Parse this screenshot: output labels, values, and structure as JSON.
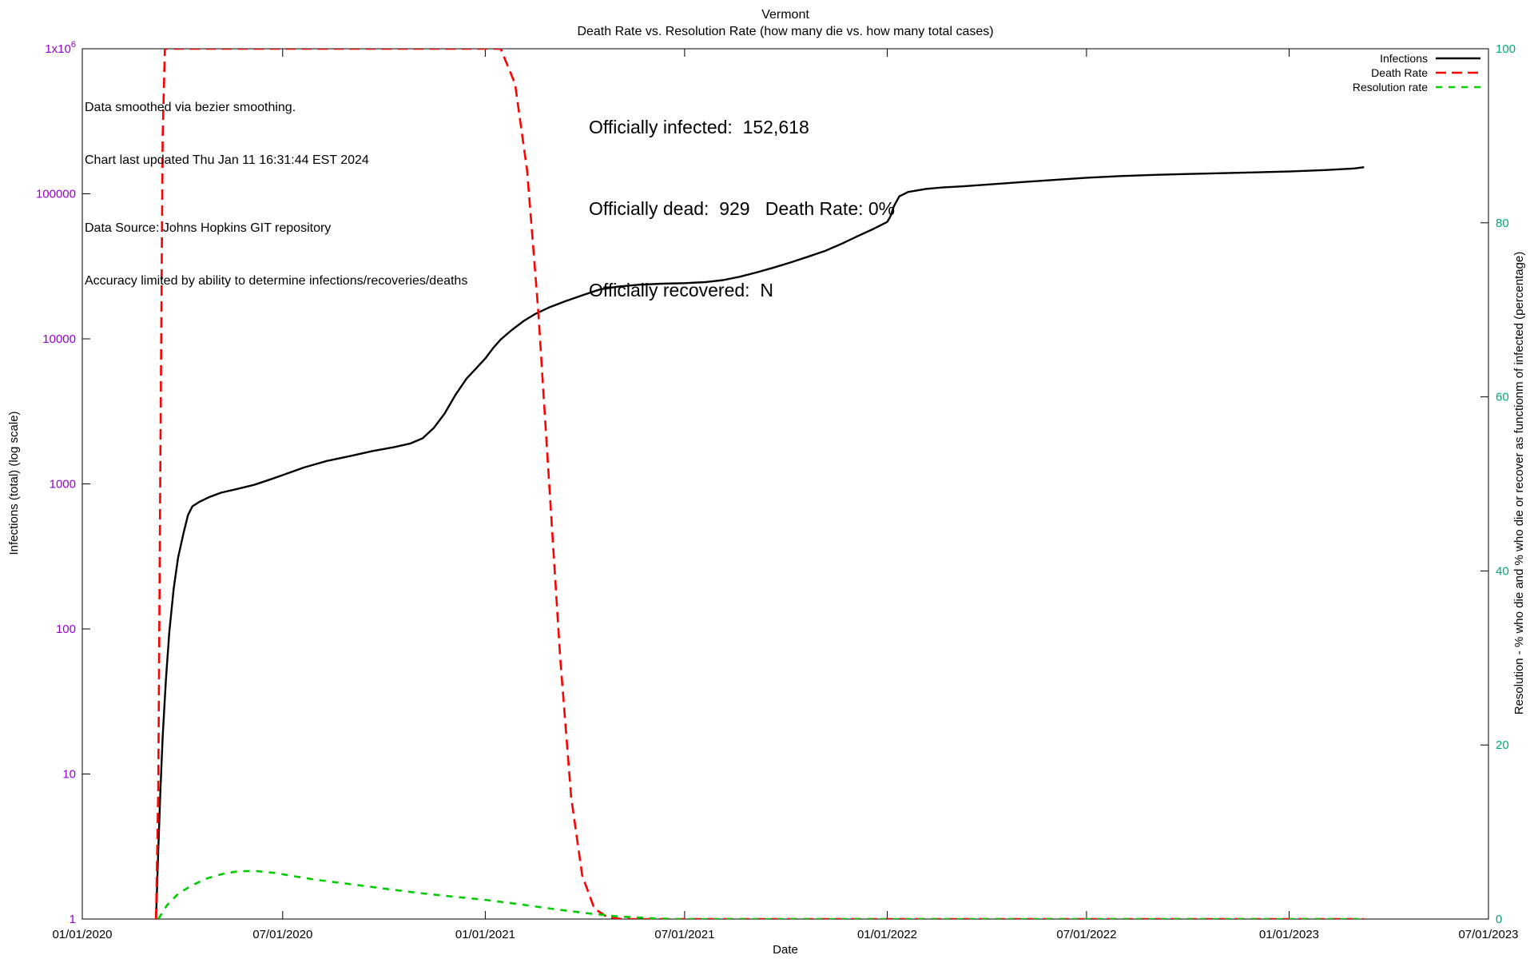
{
  "annotations": {
    "smoothing": "Data smoothed via bezier smoothing.",
    "updated": "Chart last updated Thu Jan 11 16:31:44 EST 2024",
    "source": "Data Source: Johns Hopkins GIT repository",
    "accuracy": "Accuracy limited by ability to determine infections/recoveries/deaths"
  },
  "stats": {
    "infected": "Officially infected:  152,618",
    "dead": "Officially dead:  929   Death Rate: 0%",
    "recovered": "Officially recovered:  N"
  },
  "chart_data": {
    "type": "line",
    "title": "Vermont",
    "subtitle": "Death Rate vs. Resolution Rate (how many die vs. how many total cases)",
    "xlabel": "Date",
    "ylabel_left": "Infections (total) (log scale)",
    "ylabel_right": "Resolution - % who die and % who die or recover as functionm of infected (percentage)",
    "grid": false,
    "legend_position": "top-right",
    "x_range": [
      "2020-01-01",
      "2023-07-01"
    ],
    "x_ticks": [
      "2020-01-01",
      "2020-07-01",
      "2021-01-01",
      "2021-07-01",
      "2022-01-01",
      "2022-07-01",
      "2023-01-01",
      "2023-07-01"
    ],
    "x_tick_labels": [
      "01/01/2020",
      "07/01/2020",
      "01/01/2021",
      "07/01/2021",
      "01/01/2022",
      "07/01/2022",
      "01/01/2023",
      "07/01/2023"
    ],
    "y_left": {
      "scale": "log",
      "min": 1,
      "max": 1000000,
      "tick_values": [
        1,
        10,
        100,
        1000,
        10000,
        100000,
        1000000
      ],
      "tick_labels": [
        "1",
        "10",
        "100",
        "1000",
        "10000",
        "100000",
        "1x10^6"
      ],
      "color": "#9400d3"
    },
    "y_right": {
      "scale": "linear",
      "min": 0,
      "max": 100,
      "tick_values": [
        0,
        20,
        40,
        60,
        80,
        100
      ],
      "tick_labels": [
        "0",
        "20",
        "40",
        "60",
        "80",
        "100"
      ],
      "color": "#00a878"
    },
    "series": [
      {
        "name": "Infections",
        "axis": "left",
        "color": "#000000",
        "dash": null,
        "width": 2.4,
        "points": [
          [
            "2020-03-08",
            1
          ],
          [
            "2020-03-10",
            3
          ],
          [
            "2020-03-12",
            8
          ],
          [
            "2020-03-14",
            18
          ],
          [
            "2020-03-17",
            45
          ],
          [
            "2020-03-20",
            95
          ],
          [
            "2020-03-24",
            190
          ],
          [
            "2020-03-28",
            310
          ],
          [
            "2020-04-02",
            460
          ],
          [
            "2020-04-06",
            610
          ],
          [
            "2020-04-10",
            700
          ],
          [
            "2020-04-16",
            750
          ],
          [
            "2020-04-26",
            815
          ],
          [
            "2020-05-06",
            870
          ],
          [
            "2020-05-20",
            920
          ],
          [
            "2020-06-05",
            985
          ],
          [
            "2020-06-20",
            1075
          ],
          [
            "2020-07-01",
            1150
          ],
          [
            "2020-07-20",
            1295
          ],
          [
            "2020-08-10",
            1440
          ],
          [
            "2020-09-01",
            1560
          ],
          [
            "2020-09-20",
            1680
          ],
          [
            "2020-10-10",
            1790
          ],
          [
            "2020-10-25",
            1900
          ],
          [
            "2020-11-05",
            2060
          ],
          [
            "2020-11-15",
            2420
          ],
          [
            "2020-11-25",
            3050
          ],
          [
            "2020-12-05",
            4120
          ],
          [
            "2020-12-15",
            5320
          ],
          [
            "2020-12-25",
            6420
          ],
          [
            "2021-01-01",
            7320
          ],
          [
            "2021-01-08",
            8620
          ],
          [
            "2021-01-15",
            9900
          ],
          [
            "2021-01-25",
            11500
          ],
          [
            "2021-02-05",
            13300
          ],
          [
            "2021-02-15",
            14800
          ],
          [
            "2021-03-01",
            16600
          ],
          [
            "2021-03-15",
            18200
          ],
          [
            "2021-04-01",
            20200
          ],
          [
            "2021-04-15",
            21900
          ],
          [
            "2021-05-01",
            22900
          ],
          [
            "2021-05-20",
            23600
          ],
          [
            "2021-06-10",
            24000
          ],
          [
            "2021-07-01",
            24200
          ],
          [
            "2021-07-20",
            24600
          ],
          [
            "2021-08-05",
            25400
          ],
          [
            "2021-08-20",
            26800
          ],
          [
            "2021-09-05",
            28800
          ],
          [
            "2021-09-20",
            31000
          ],
          [
            "2021-10-05",
            33600
          ],
          [
            "2021-10-20",
            36600
          ],
          [
            "2021-11-05",
            40200
          ],
          [
            "2021-11-20",
            45000
          ],
          [
            "2021-12-05",
            51000
          ],
          [
            "2021-12-20",
            57500
          ],
          [
            "2022-01-01",
            64000
          ],
          [
            "2022-01-04",
            70000
          ],
          [
            "2022-01-07",
            82000
          ],
          [
            "2022-01-12",
            96000
          ],
          [
            "2022-01-20",
            103000
          ],
          [
            "2022-02-05",
            108000
          ],
          [
            "2022-02-20",
            110500
          ],
          [
            "2022-03-10",
            112500
          ],
          [
            "2022-04-01",
            115500
          ],
          [
            "2022-05-01",
            120000
          ],
          [
            "2022-06-01",
            124500
          ],
          [
            "2022-07-01",
            129000
          ],
          [
            "2022-08-01",
            132500
          ],
          [
            "2022-09-01",
            135000
          ],
          [
            "2022-10-01",
            137000
          ],
          [
            "2022-11-01",
            138800
          ],
          [
            "2022-12-01",
            140500
          ],
          [
            "2023-01-01",
            142500
          ],
          [
            "2023-02-01",
            145500
          ],
          [
            "2023-03-01",
            149500
          ],
          [
            "2023-03-10",
            152618
          ]
        ]
      },
      {
        "name": "Death Rate",
        "axis": "right",
        "color": "#ff0000",
        "dash": "13 7",
        "width": 2.6,
        "points": [
          [
            "2020-03-08",
            0
          ],
          [
            "2020-03-10",
            15
          ],
          [
            "2020-03-12",
            55
          ],
          [
            "2020-03-14",
            90
          ],
          [
            "2020-03-16",
            100
          ],
          [
            "2021-01-15",
            100
          ],
          [
            "2021-01-28",
            96
          ],
          [
            "2021-02-08",
            86
          ],
          [
            "2021-02-18",
            70
          ],
          [
            "2021-02-28",
            50
          ],
          [
            "2021-03-10",
            30
          ],
          [
            "2021-03-20",
            14
          ],
          [
            "2021-03-30",
            5
          ],
          [
            "2021-04-10",
            1.2
          ],
          [
            "2021-04-22",
            0.2
          ],
          [
            "2021-05-05",
            0
          ],
          [
            "2023-03-10",
            0
          ]
        ]
      },
      {
        "name": "Resolution rate",
        "axis": "right",
        "color": "#00cc00",
        "dash": "8 8",
        "width": 2.6,
        "points": [
          [
            "2020-03-10",
            0
          ],
          [
            "2020-03-18",
            1.6
          ],
          [
            "2020-03-28",
            2.9
          ],
          [
            "2020-04-10",
            3.9
          ],
          [
            "2020-04-24",
            4.7
          ],
          [
            "2020-05-08",
            5.2
          ],
          [
            "2020-05-22",
            5.5
          ],
          [
            "2020-06-08",
            5.5
          ],
          [
            "2020-06-24",
            5.3
          ],
          [
            "2020-07-12",
            4.9
          ],
          [
            "2020-08-01",
            4.5
          ],
          [
            "2020-09-01",
            4.0
          ],
          [
            "2020-10-01",
            3.5
          ],
          [
            "2020-11-01",
            3.0
          ],
          [
            "2020-12-01",
            2.6
          ],
          [
            "2021-01-01",
            2.2
          ],
          [
            "2021-02-01",
            1.7
          ],
          [
            "2021-03-01",
            1.2
          ],
          [
            "2021-04-01",
            0.7
          ],
          [
            "2021-05-01",
            0.3
          ],
          [
            "2021-06-01",
            0.1
          ],
          [
            "2021-06-20",
            0
          ],
          [
            "2023-03-10",
            0
          ]
        ]
      }
    ]
  }
}
